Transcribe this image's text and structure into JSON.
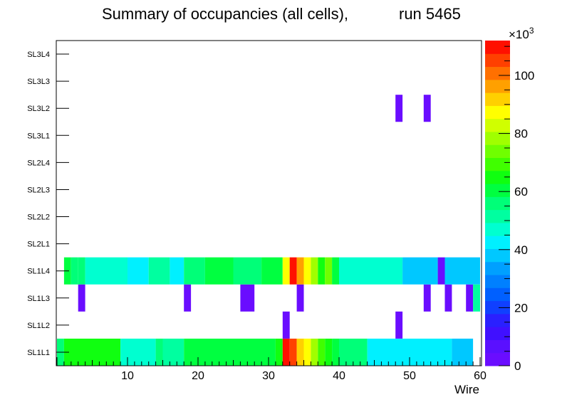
{
  "chart_data": {
    "type": "heatmap",
    "title": "Summary of occupancies (all cells),",
    "run_label": "run 5465",
    "xlabel": "Wire",
    "ylabel": "",
    "x_range": [
      0,
      60
    ],
    "x_ticks": [
      10,
      20,
      30,
      40,
      50,
      60
    ],
    "layers": [
      "SL1L1",
      "SL1L2",
      "SL1L3",
      "SL1L4",
      "SL2L1",
      "SL2L2",
      "SL2L3",
      "SL2L4",
      "SL3L1",
      "SL3L2",
      "SL3L3",
      "SL3L4"
    ],
    "z_range": [
      0,
      112000
    ],
    "z_ticks": [
      0,
      20,
      40,
      60,
      80,
      100
    ],
    "z_exponent": "×10",
    "z_exponent_power": "3",
    "palette": [
      "#6a0dff",
      "#5a10ff",
      "#4010ff",
      "#2a20ff",
      "#1040ff",
      "#0060ff",
      "#0080ff",
      "#00a0ff",
      "#00c8ff",
      "#00f0ff",
      "#00ffd0",
      "#00ffa0",
      "#00ff78",
      "#00ff40",
      "#10ff10",
      "#40ff00",
      "#70ff00",
      "#a0ff00",
      "#d0ff00",
      "#ffff00",
      "#ffd000",
      "#ffa000",
      "#ff7000",
      "#ff4000",
      "#ff1000"
    ],
    "layer_cells": {
      "SL1L1": [
        [
          1,
          1,
          58000
        ],
        [
          2,
          9,
          63000
        ],
        [
          10,
          14,
          49000
        ],
        [
          15,
          15,
          56000
        ],
        [
          16,
          18,
          50000
        ],
        [
          19,
          31,
          61000
        ],
        [
          32,
          32,
          66000
        ],
        [
          33,
          33,
          112000
        ],
        [
          34,
          34,
          104000
        ],
        [
          35,
          35,
          94000
        ],
        [
          36,
          36,
          88000
        ],
        [
          37,
          37,
          80000
        ],
        [
          38,
          38,
          70000
        ],
        [
          39,
          39,
          66000
        ],
        [
          40,
          40,
          62000
        ],
        [
          41,
          44,
          54000
        ],
        [
          45,
          56,
          44000
        ],
        [
          57,
          59,
          39000
        ]
      ],
      "SL1L2": [
        [
          33,
          33,
          3000
        ],
        [
          49,
          49,
          3000
        ]
      ],
      "SL1L3": [
        [
          4,
          4,
          3000
        ],
        [
          19,
          19,
          3000
        ],
        [
          27,
          28,
          3000
        ],
        [
          35,
          35,
          3000
        ],
        [
          53,
          53,
          3000
        ],
        [
          56,
          56,
          3000
        ],
        [
          59,
          59,
          3000
        ],
        [
          60,
          60,
          52000
        ]
      ],
      "SL1L4": [
        [
          2,
          2,
          61000
        ],
        [
          3,
          3,
          55000
        ],
        [
          4,
          4,
          58000
        ],
        [
          5,
          10,
          49000
        ],
        [
          11,
          13,
          44000
        ],
        [
          14,
          16,
          53000
        ],
        [
          17,
          18,
          44000
        ],
        [
          19,
          21,
          56000
        ],
        [
          22,
          25,
          61000
        ],
        [
          26,
          29,
          55000
        ],
        [
          30,
          32,
          61000
        ],
        [
          33,
          33,
          86000
        ],
        [
          34,
          34,
          112000
        ],
        [
          35,
          35,
          98000
        ],
        [
          36,
          36,
          86000
        ],
        [
          37,
          37,
          80000
        ],
        [
          38,
          38,
          67000
        ],
        [
          39,
          39,
          74000
        ],
        [
          40,
          40,
          62000
        ],
        [
          41,
          49,
          45000
        ],
        [
          50,
          54,
          40000
        ],
        [
          55,
          55,
          3000
        ],
        [
          56,
          60,
          39000
        ]
      ],
      "SL3L2": [
        [
          49,
          49,
          3000
        ],
        [
          53,
          53,
          3000
        ]
      ]
    }
  }
}
